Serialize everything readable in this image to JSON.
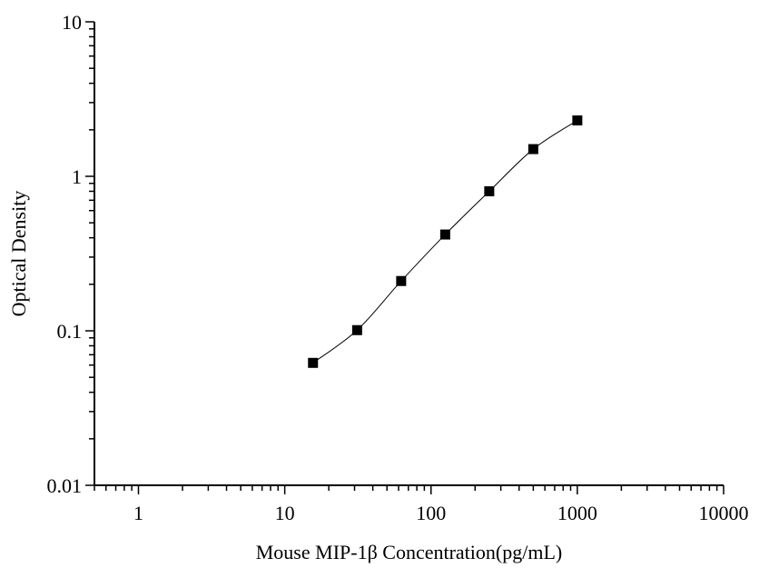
{
  "chart_data": {
    "type": "scatter",
    "title": "",
    "xlabel": "Mouse MIP-1β Concentration(pg/mL)",
    "ylabel": "Optical Density",
    "xscale": "log",
    "yscale": "log",
    "xlim": [
      0.5,
      10000
    ],
    "ylim": [
      0.01,
      10
    ],
    "x_ticks": [
      1,
      10,
      100,
      1000,
      10000
    ],
    "x_tick_labels": [
      "1",
      "10",
      "100",
      "1000",
      "10000"
    ],
    "y_ticks": [
      0.01,
      0.1,
      1,
      10
    ],
    "y_tick_labels": [
      "0.01",
      "0.1",
      "1",
      "10"
    ],
    "grid": false,
    "legend": "none",
    "marker": "square",
    "fit_line": "smooth curve through points",
    "colors": {
      "points": "#000000",
      "line": "#000000",
      "axes": "#000000"
    },
    "series": [
      {
        "x": [
          15.6,
          31.25,
          62.5,
          125,
          250,
          500,
          1000
        ],
        "y": [
          0.062,
          0.101,
          0.21,
          0.42,
          0.8,
          1.5,
          2.3
        ]
      }
    ]
  }
}
